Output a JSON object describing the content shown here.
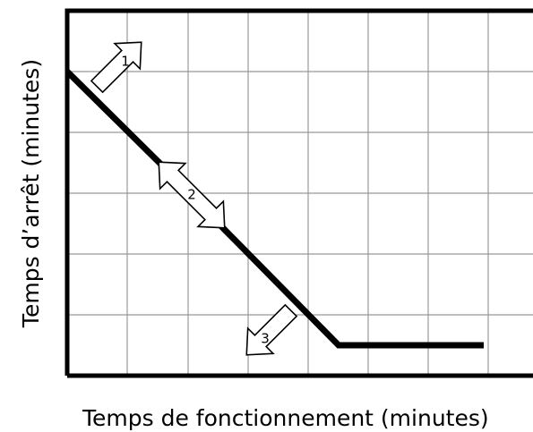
{
  "diagram": {
    "y_axis_label": "Temps d’arrêt (minutes)",
    "x_axis_label": "Temps de fonctionnement (minutes)",
    "annotations": [
      "1",
      "2",
      "3"
    ]
  }
}
